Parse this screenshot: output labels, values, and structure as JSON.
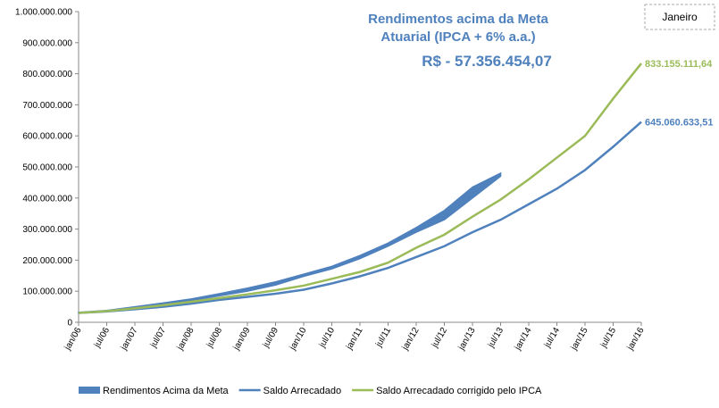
{
  "chart_data": {
    "type": "line",
    "annotations": [
      "Rendimentos acima da Meta",
      "Atuarial (IPCA + 6% a.a.)",
      "R$ - 57.356.454,07"
    ],
    "selector": "Janeiro",
    "categories": [
      "jan/06",
      "jul/06",
      "jan/07",
      "jul/07",
      "jan/08",
      "jul/08",
      "jan/09",
      "jul/09",
      "jan/10",
      "jul/10",
      "jan/11",
      "jul/11",
      "jan/12",
      "jul/12",
      "jan/13",
      "jul/13",
      "jan/14",
      "jul/14",
      "jan/15",
      "jul/15",
      "jan/16"
    ],
    "ylim": [
      0,
      1000000000
    ],
    "yticks": [
      0,
      {
        "value": 100000000,
        "label": "100.000.000"
      },
      {
        "value": 200000000,
        "label": "200.000.000"
      },
      {
        "value": 300000000,
        "label": "300.000.000"
      },
      {
        "value": 400000000,
        "label": "400.000.000"
      },
      {
        "value": 500000000,
        "label": "500.000.000"
      },
      {
        "value": 600000000,
        "label": "600.000.000"
      },
      {
        "value": 700000000,
        "label": "700.000.000"
      },
      {
        "value": 800000000,
        "label": "800.000.000"
      },
      {
        "value": 900000000,
        "label": "900.000.000"
      },
      {
        "value": 1000000000,
        "label": "1.000.000.000"
      }
    ],
    "series": [
      {
        "name": "Rendimentos Acima da Meta",
        "type": "band",
        "color": "#4f81bd",
        "low": [
          30000000,
          36000000,
          47000000,
          58000000,
          70000000,
          85000000,
          100000000,
          120000000,
          148000000,
          172000000,
          205000000,
          245000000,
          290000000,
          330000000,
          400000000,
          470000000,
          null,
          null,
          null,
          null,
          null
        ],
        "high": [
          32000000,
          38000000,
          50000000,
          62000000,
          75000000,
          92000000,
          110000000,
          130000000,
          155000000,
          180000000,
          215000000,
          255000000,
          305000000,
          360000000,
          435000000,
          480000000,
          null,
          null,
          null,
          null,
          null
        ]
      },
      {
        "name": "Saldo Arrecadado",
        "color": "#4f81bd",
        "values": [
          30000000,
          35000000,
          42000000,
          50000000,
          60000000,
          72000000,
          82000000,
          92000000,
          105000000,
          125000000,
          148000000,
          175000000,
          210000000,
          245000000,
          290000000,
          330000000,
          380000000,
          430000000,
          490000000,
          565000000,
          645060633.51
        ],
        "value_labels": [
          null,
          null,
          null,
          null,
          null,
          null,
          null,
          null,
          null,
          null,
          null,
          null,
          null,
          null,
          null,
          null,
          null,
          null,
          null,
          null,
          "645.060.633,51"
        ]
      },
      {
        "name": "Saldo Arrecadado corrigido pelo IPCA",
        "color": "#9bbb59",
        "values": [
          30000000,
          36000000,
          45000000,
          55000000,
          66000000,
          78000000,
          90000000,
          103000000,
          118000000,
          140000000,
          162000000,
          192000000,
          240000000,
          282000000,
          340000000,
          395000000,
          460000000,
          530000000,
          600000000,
          720000000,
          833155111.64
        ],
        "value_labels": [
          null,
          null,
          null,
          null,
          null,
          null,
          null,
          null,
          null,
          null,
          null,
          null,
          null,
          null,
          null,
          null,
          null,
          null,
          null,
          null,
          "833.155.111,64"
        ]
      }
    ]
  }
}
